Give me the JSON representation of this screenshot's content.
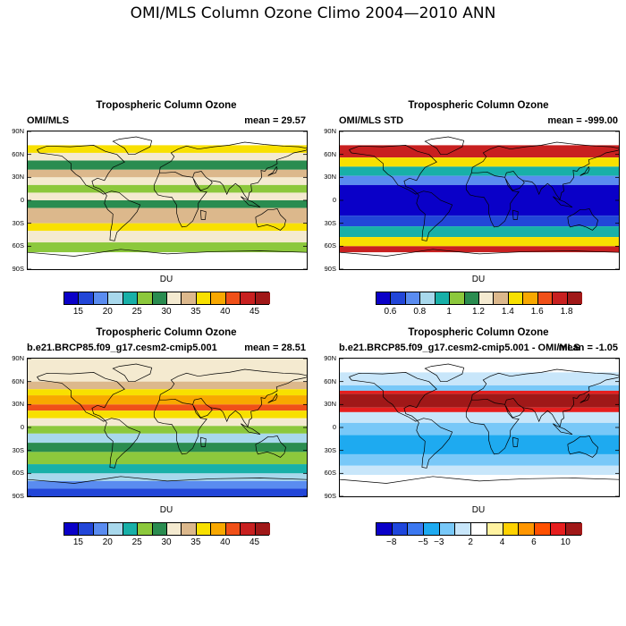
{
  "main_title": "OMI/MLS Column Ozone Climo 2004—2010 ANN",
  "land_color": "#000000",
  "chart_data": [
    {
      "type": "heatmap",
      "title": "Tropospheric Column Ozone",
      "left_label": "OMI/MLS",
      "right_label": "mean =  29.57",
      "unit": "DU",
      "ylim": [
        -90,
        90
      ],
      "yticks": [
        "90N",
        "60N",
        "30N",
        "0",
        "30S",
        "60S",
        "90S"
      ],
      "colorbar_labels": [
        "15",
        "20",
        "25",
        "30",
        "35",
        "40",
        "45"
      ],
      "label_slots": [
        1,
        3,
        5,
        7,
        9,
        11,
        13
      ],
      "colors": [
        "#0a00c8",
        "#2246d8",
        "#5a8cf0",
        "#a8d8ec",
        "#18b0a8",
        "#8cc83c",
        "#2a8c50",
        "#f4ead0",
        "#dcb88c",
        "#f8e000",
        "#f8a800",
        "#f05018",
        "#c82020",
        "#a01818"
      ],
      "missing_color": "#ffffff",
      "bands": [
        {
          "lat": 90,
          "level": -1
        },
        {
          "lat": 72,
          "level": 9
        },
        {
          "lat": 62,
          "level": 7
        },
        {
          "lat": 52,
          "level": 6
        },
        {
          "lat": 40,
          "level": 8
        },
        {
          "lat": 30,
          "level": 7
        },
        {
          "lat": 20,
          "level": 5
        },
        {
          "lat": 10,
          "level": 7
        },
        {
          "lat": 0,
          "level": 6
        },
        {
          "lat": -10,
          "level": 8
        },
        {
          "lat": -30,
          "level": 9
        },
        {
          "lat": -40,
          "level": 7
        },
        {
          "lat": -55,
          "level": 5
        },
        {
          "lat": -68,
          "level": -1
        }
      ]
    },
    {
      "type": "heatmap",
      "title": "Tropospheric Column Ozone",
      "left_label": "OMI/MLS STD",
      "right_label": "mean = -999.00",
      "unit": "DU",
      "ylim": [
        -90,
        90
      ],
      "yticks": [
        "90N",
        "60N",
        "30N",
        "0",
        "30S",
        "60S",
        "90S"
      ],
      "colorbar_labels": [
        "0.6",
        "0.8",
        "1",
        "1.2",
        "1.4",
        "1.6",
        "1.8"
      ],
      "label_slots": [
        1,
        3,
        5,
        7,
        9,
        11,
        13
      ],
      "colors": [
        "#0a00c8",
        "#2246d8",
        "#5a8cf0",
        "#a8d8ec",
        "#18b0a8",
        "#8cc83c",
        "#2a8c50",
        "#f4ead0",
        "#dcb88c",
        "#f8e000",
        "#f8a800",
        "#f05018",
        "#c82020",
        "#a01818"
      ],
      "missing_color": "#ffffff",
      "bands": [
        {
          "lat": 90,
          "level": -1
        },
        {
          "lat": 72,
          "level": 12
        },
        {
          "lat": 56,
          "level": 9
        },
        {
          "lat": 44,
          "level": 4
        },
        {
          "lat": 32,
          "level": 2
        },
        {
          "lat": 20,
          "level": 0
        },
        {
          "lat": -20,
          "level": 1
        },
        {
          "lat": -34,
          "level": 4
        },
        {
          "lat": -48,
          "level": 9
        },
        {
          "lat": -60,
          "level": 12
        },
        {
          "lat": -68,
          "level": -1
        }
      ]
    },
    {
      "type": "heatmap",
      "title": "Tropospheric Column Ozone",
      "left_label": "b.e21.BRCP85.f09_g17.cesm2-cmip5.001",
      "right_label": "mean =  28.51",
      "unit": "DU",
      "ylim": [
        -90,
        90
      ],
      "yticks": [
        "90N",
        "60N",
        "30N",
        "0",
        "30S",
        "60S",
        "90S"
      ],
      "colorbar_labels": [
        "15",
        "20",
        "25",
        "30",
        "35",
        "40",
        "45"
      ],
      "label_slots": [
        1,
        3,
        5,
        7,
        9,
        11,
        13
      ],
      "colors": [
        "#0a00c8",
        "#2246d8",
        "#5a8cf0",
        "#a8d8ec",
        "#18b0a8",
        "#8cc83c",
        "#2a8c50",
        "#f4ead0",
        "#dcb88c",
        "#f8e000",
        "#f8a800",
        "#f05018",
        "#c82020",
        "#a01818"
      ],
      "missing_color": "#ffffff",
      "bands": [
        {
          "lat": 90,
          "level": 7
        },
        {
          "lat": 60,
          "level": 8
        },
        {
          "lat": 50,
          "level": 9
        },
        {
          "lat": 42,
          "level": 10
        },
        {
          "lat": 30,
          "level": 11
        },
        {
          "lat": 22,
          "level": 9
        },
        {
          "lat": 12,
          "level": 7
        },
        {
          "lat": 2,
          "level": 5
        },
        {
          "lat": -8,
          "level": 3
        },
        {
          "lat": -20,
          "level": 6
        },
        {
          "lat": -32,
          "level": 5
        },
        {
          "lat": -48,
          "level": 4
        },
        {
          "lat": -60,
          "level": 3
        },
        {
          "lat": -70,
          "level": 2
        },
        {
          "lat": -80,
          "level": 1
        }
      ]
    },
    {
      "type": "heatmap",
      "title": "Tropospheric Column Ozone",
      "left_label": "b.e21.BRCP85.f09_g17.cesm2-cmip5.001 - OMI/MLS",
      "right_label": "mean = -1.05",
      "unit": "DU",
      "ylim": [
        -90,
        90
      ],
      "yticks": [
        "90N",
        "60N",
        "30N",
        "0",
        "30S",
        "60S",
        "90S"
      ],
      "colorbar_labels": [
        "−8",
        "−5",
        "−3",
        "2",
        "4",
        "6",
        "10"
      ],
      "label_slots": [
        1,
        3,
        4,
        6,
        8,
        10,
        12
      ],
      "colors": [
        "#0a00c8",
        "#1e46dc",
        "#3c78f0",
        "#1eaaf0",
        "#78c8f8",
        "#c8e6fa",
        "#ffffff",
        "#fff2a0",
        "#ffd200",
        "#ff9600",
        "#ff5000",
        "#e61e1e",
        "#a01818"
      ],
      "missing_color": "#ffffff",
      "bands": [
        {
          "lat": 90,
          "level": -1
        },
        {
          "lat": 72,
          "level": 5
        },
        {
          "lat": 55,
          "level": 4
        },
        {
          "lat": 48,
          "level": 11
        },
        {
          "lat": 44,
          "level": 12
        },
        {
          "lat": 26,
          "level": 11
        },
        {
          "lat": 20,
          "level": 5
        },
        {
          "lat": 6,
          "level": 4
        },
        {
          "lat": -10,
          "level": 3
        },
        {
          "lat": -35,
          "level": 4
        },
        {
          "lat": -50,
          "level": 5
        },
        {
          "lat": -62,
          "level": 6
        },
        {
          "lat": -68,
          "level": -1
        }
      ]
    }
  ]
}
